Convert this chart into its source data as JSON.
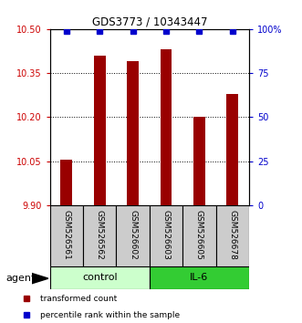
{
  "title": "GDS3773 / 10343447",
  "samples": [
    "GSM526561",
    "GSM526562",
    "GSM526602",
    "GSM526603",
    "GSM526605",
    "GSM526678"
  ],
  "bar_values": [
    10.055,
    10.41,
    10.39,
    10.43,
    10.2,
    10.28
  ],
  "percentile_values": [
    99,
    99,
    99,
    99,
    99,
    99
  ],
  "ylim_left": [
    9.9,
    10.5
  ],
  "ylim_right": [
    0,
    100
  ],
  "yticks_left": [
    9.9,
    10.05,
    10.2,
    10.35,
    10.5
  ],
  "yticks_right": [
    0,
    25,
    50,
    75,
    100
  ],
  "bar_color": "#990000",
  "dot_color": "#0000cc",
  "bar_width": 0.35,
  "groups": [
    {
      "label": "control",
      "indices": [
        0,
        1,
        2
      ],
      "color": "#ccffcc"
    },
    {
      "label": "IL-6",
      "indices": [
        3,
        4,
        5
      ],
      "color": "#33cc33"
    }
  ],
  "agent_label": "agent",
  "legend_items": [
    {
      "label": "transformed count",
      "color": "#990000"
    },
    {
      "label": "percentile rank within the sample",
      "color": "#0000cc"
    }
  ],
  "background_color": "#ffffff",
  "left_axis_color": "#cc0000",
  "right_axis_color": "#0000cc",
  "sample_box_color": "#cccccc",
  "main_axes": [
    0.165,
    0.365,
    0.66,
    0.545
  ],
  "sample_axes": [
    0.165,
    0.175,
    0.66,
    0.19
  ],
  "group_axes": [
    0.165,
    0.105,
    0.66,
    0.07
  ],
  "legend_axes": [
    0.05,
    0.005,
    0.92,
    0.09
  ]
}
